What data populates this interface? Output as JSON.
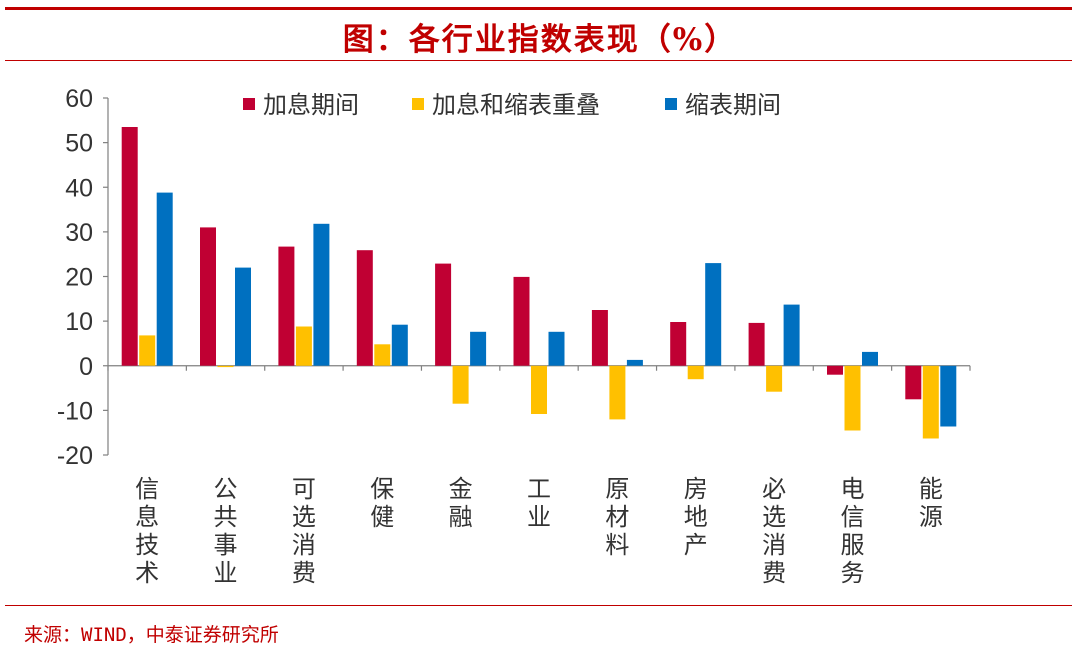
{
  "page": {
    "title": "图：各行业指数表现（%）",
    "source": "来源：WIND，中泰证券研究所"
  },
  "colors": {
    "accent": "#c00000",
    "series": [
      "#c00033",
      "#ffc000",
      "#0070c0"
    ],
    "axis": "#808080",
    "text": "#333333"
  },
  "chart_data": {
    "type": "bar",
    "title": "各行业指数表现（%）",
    "xlabel": "",
    "ylabel": "",
    "ylim": [
      -20,
      60
    ],
    "yticks": [
      60,
      50,
      40,
      30,
      20,
      10,
      0,
      -10,
      -20
    ],
    "grid": false,
    "legend_position": "top",
    "categories": [
      "信息技术",
      "公共事业",
      "可选消费",
      "保健",
      "金融",
      "工业",
      "原材料",
      "房地产",
      "必选消费",
      "电信服务",
      "能源"
    ],
    "series": [
      {
        "name": "加息期间",
        "values": [
          53.5,
          31,
          26.7,
          25.9,
          22.9,
          19.9,
          12.5,
          9.8,
          9.6,
          -2,
          -7.5
        ]
      },
      {
        "name": "加息和缩表重叠",
        "values": [
          6.8,
          -0.3,
          8.8,
          4.8,
          -8.5,
          -10.8,
          -12,
          -3,
          -5.8,
          -14.5,
          -16.3
        ]
      },
      {
        "name": "缩表期间",
        "values": [
          38.8,
          22,
          31.8,
          9.2,
          7.6,
          7.6,
          1.3,
          23,
          13.7,
          3.1,
          -13.6
        ]
      }
    ]
  }
}
